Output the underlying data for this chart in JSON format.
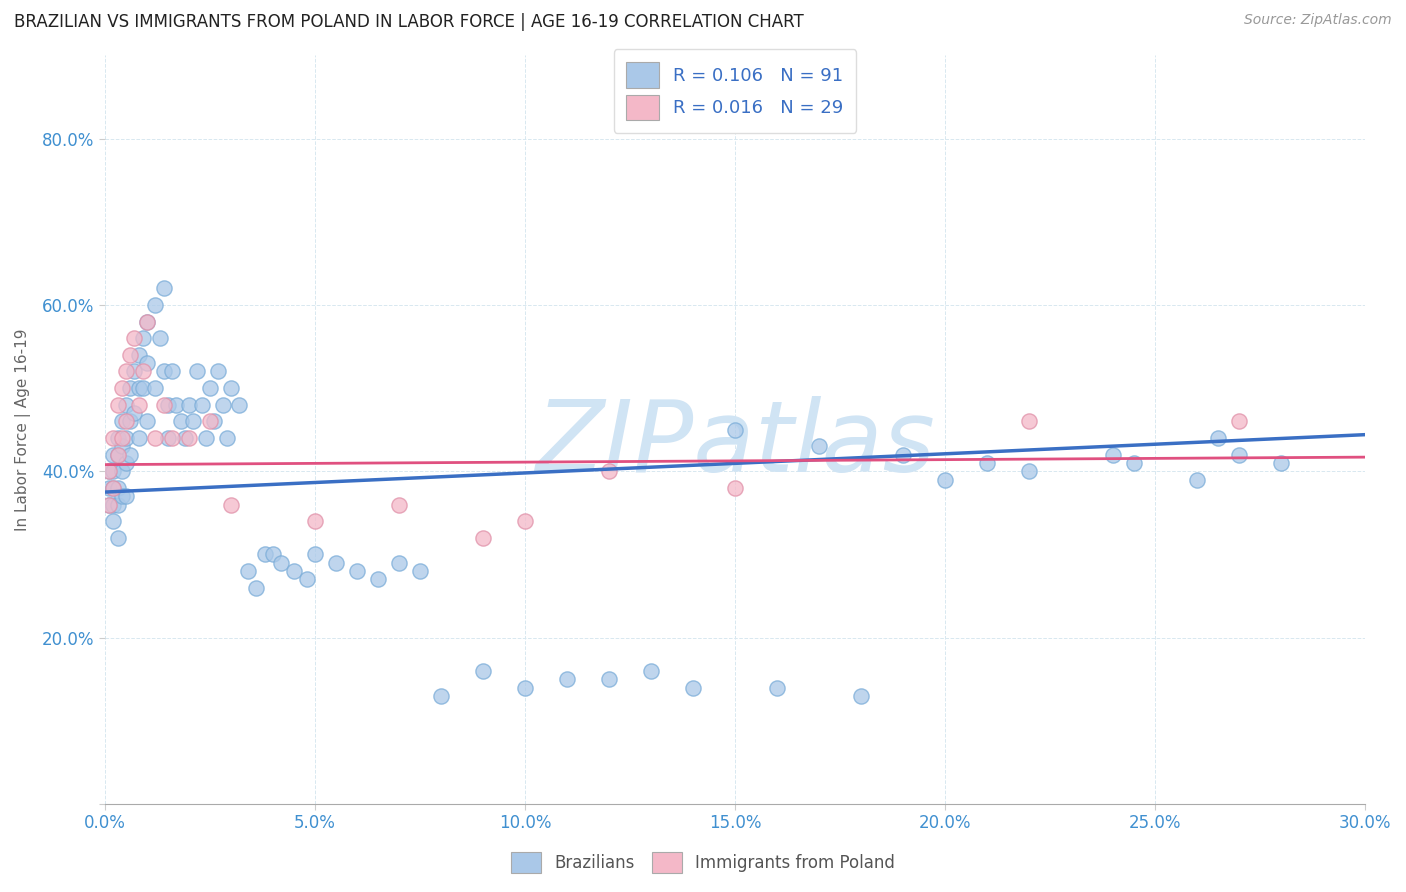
{
  "title": "BRAZILIAN VS IMMIGRANTS FROM POLAND IN LABOR FORCE | AGE 16-19 CORRELATION CHART",
  "source": "Source: ZipAtlas.com",
  "ylabel": "In Labor Force | Age 16-19",
  "xlim": [
    0.0,
    0.3
  ],
  "ylim": [
    0.0,
    0.9
  ],
  "xticks": [
    0.0,
    0.05,
    0.1,
    0.15,
    0.2,
    0.25,
    0.3
  ],
  "yticks": [
    0.0,
    0.2,
    0.4,
    0.6,
    0.8
  ],
  "ytick_labels": [
    "",
    "20.0%",
    "40.0%",
    "60.0%",
    "80.0%"
  ],
  "xtick_labels": [
    "0.0%",
    "5.0%",
    "10.0%",
    "15.0%",
    "20.0%",
    "25.0%",
    "30.0%"
  ],
  "r_brazilian": 0.106,
  "n_brazilian": 91,
  "r_poland": 0.016,
  "n_poland": 29,
  "color_brazilian": "#aac8e8",
  "color_poland": "#f4b8c8",
  "color_trend_brazilian": "#3a6fc4",
  "color_trend_poland": "#e05080",
  "watermark": "ZIPatlas",
  "watermark_color": "#d0e4f4",
  "legend_text_color": "#3a6fc4",
  "background_color": "#ffffff",
  "grid_color": "#d8e8f0",
  "brazilians_x": [
    0.001,
    0.001,
    0.001,
    0.002,
    0.002,
    0.002,
    0.002,
    0.002,
    0.003,
    0.003,
    0.003,
    0.003,
    0.003,
    0.004,
    0.004,
    0.004,
    0.004,
    0.005,
    0.005,
    0.005,
    0.005,
    0.006,
    0.006,
    0.006,
    0.007,
    0.007,
    0.008,
    0.008,
    0.008,
    0.009,
    0.009,
    0.01,
    0.01,
    0.01,
    0.012,
    0.012,
    0.013,
    0.014,
    0.014,
    0.015,
    0.015,
    0.016,
    0.017,
    0.018,
    0.019,
    0.02,
    0.021,
    0.022,
    0.023,
    0.024,
    0.025,
    0.026,
    0.027,
    0.028,
    0.029,
    0.03,
    0.032,
    0.034,
    0.036,
    0.038,
    0.04,
    0.042,
    0.045,
    0.048,
    0.05,
    0.055,
    0.06,
    0.065,
    0.07,
    0.075,
    0.08,
    0.09,
    0.1,
    0.11,
    0.12,
    0.13,
    0.14,
    0.16,
    0.18,
    0.2,
    0.22,
    0.24,
    0.245,
    0.26,
    0.265,
    0.27,
    0.28,
    0.19,
    0.15,
    0.17,
    0.21
  ],
  "brazilians_y": [
    0.4,
    0.38,
    0.36,
    0.42,
    0.4,
    0.38,
    0.36,
    0.34,
    0.44,
    0.42,
    0.38,
    0.36,
    0.32,
    0.46,
    0.43,
    0.4,
    0.37,
    0.48,
    0.44,
    0.41,
    0.37,
    0.5,
    0.46,
    0.42,
    0.52,
    0.47,
    0.54,
    0.5,
    0.44,
    0.56,
    0.5,
    0.58,
    0.53,
    0.46,
    0.6,
    0.5,
    0.56,
    0.62,
    0.52,
    0.48,
    0.44,
    0.52,
    0.48,
    0.46,
    0.44,
    0.48,
    0.46,
    0.52,
    0.48,
    0.44,
    0.5,
    0.46,
    0.52,
    0.48,
    0.44,
    0.5,
    0.48,
    0.28,
    0.26,
    0.3,
    0.3,
    0.29,
    0.28,
    0.27,
    0.3,
    0.29,
    0.28,
    0.27,
    0.29,
    0.28,
    0.13,
    0.16,
    0.14,
    0.15,
    0.15,
    0.16,
    0.14,
    0.14,
    0.13,
    0.39,
    0.4,
    0.42,
    0.41,
    0.39,
    0.44,
    0.42,
    0.41,
    0.42,
    0.45,
    0.43,
    0.41
  ],
  "poland_x": [
    0.001,
    0.001,
    0.002,
    0.002,
    0.003,
    0.003,
    0.004,
    0.004,
    0.005,
    0.005,
    0.006,
    0.007,
    0.008,
    0.009,
    0.01,
    0.012,
    0.014,
    0.016,
    0.02,
    0.025,
    0.03,
    0.05,
    0.07,
    0.09,
    0.1,
    0.12,
    0.15,
    0.22,
    0.27
  ],
  "poland_y": [
    0.4,
    0.36,
    0.44,
    0.38,
    0.48,
    0.42,
    0.5,
    0.44,
    0.52,
    0.46,
    0.54,
    0.56,
    0.48,
    0.52,
    0.58,
    0.44,
    0.48,
    0.44,
    0.44,
    0.46,
    0.36,
    0.34,
    0.36,
    0.32,
    0.34,
    0.4,
    0.38,
    0.46,
    0.46
  ]
}
